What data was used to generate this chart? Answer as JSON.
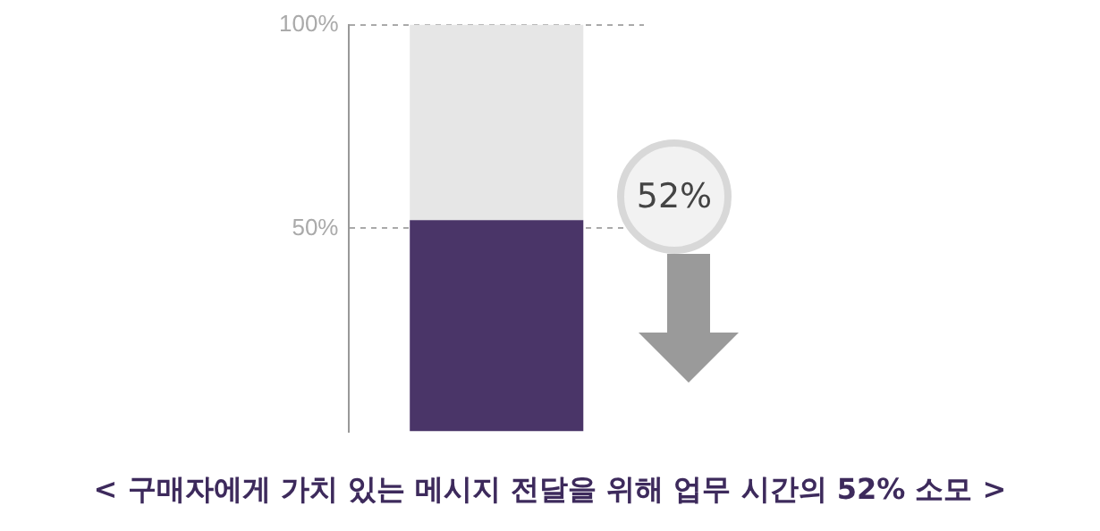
{
  "chart_data": {
    "type": "bar",
    "stacked": true,
    "categories": [
      null
    ],
    "series": [
      {
        "color": "#4a3568",
        "values": [
          52
        ]
      },
      {
        "color": "#e6e6e6",
        "values": [
          48
        ]
      }
    ],
    "ylim": [
      0,
      100
    ],
    "yticks": [
      {
        "value": 0,
        "label": null
      },
      {
        "value": 50,
        "label": "50%"
      },
      {
        "value": 100,
        "label": "100%"
      }
    ],
    "grid": "y",
    "legend": false,
    "annotations": [
      "52%",
      "< 구매자에게 가치 있는 메시지 전달을 위해 업무 시간의 52% 소모 >"
    ]
  }
}
